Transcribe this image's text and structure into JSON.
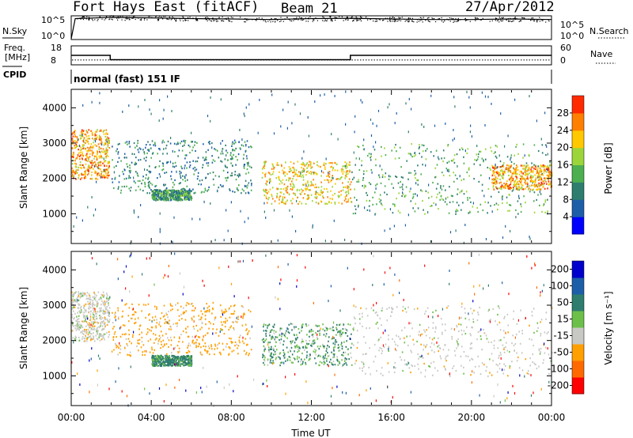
{
  "header": {
    "station": "Fort Hays East (fitACF)",
    "beam": "Beam 21",
    "date": "27/Apr/2012"
  },
  "noise_panel": {
    "left_label": "N.Sky",
    "right_label": "N.Search",
    "ticks_left": [
      "10^5",
      "10^0"
    ],
    "ticks_right": [
      "10^5",
      "10^0"
    ]
  },
  "freq_panel": {
    "left_label_top": "Freq.",
    "left_label_bottom": "[MHz]",
    "right_label": "Nave",
    "ticks_left": [
      "18",
      "8"
    ],
    "ticks_right": [
      "60",
      "0"
    ]
  },
  "cpid": {
    "label": "CPID",
    "value": "normal (fast) 151 IF"
  },
  "power_colorbar": {
    "title": "Power [dB]",
    "ticks": [
      "28",
      "24",
      "20",
      "16",
      "12",
      "8",
      "4"
    ],
    "colors": [
      "#0000ff",
      "#1c5fa8",
      "#2e7d6e",
      "#4caf50",
      "#9cd53a",
      "#ffc800",
      "#ff7f00",
      "#ff2a00"
    ]
  },
  "velocity_colorbar": {
    "title": "Velocity [m s⁻¹]",
    "ticks": [
      "200",
      "100",
      "50",
      "15",
      "-15",
      "-50",
      "-100",
      "-200"
    ],
    "colors": [
      "#0000cc",
      "#1c5fa8",
      "#2e7d6e",
      "#6cc04a",
      "#c8c8c4",
      "#ffa000",
      "#ff6a00",
      "#ff0000"
    ]
  },
  "chart_data": [
    {
      "type": "line",
      "title": "",
      "xlabel": "",
      "ylabel": "N.Sky",
      "ylog": true,
      "series": [
        {
          "name": "N.Sky",
          "x_hours": [
            0,
            0.2,
            2,
            4,
            6,
            8,
            10,
            12,
            14,
            16,
            18,
            20,
            22,
            24
          ],
          "values": [
            1,
            100000,
            200000,
            150000,
            100000,
            80000,
            60000,
            100000,
            120000,
            80000,
            60000,
            60000,
            80000,
            60000
          ]
        },
        {
          "name": "N.Search",
          "x_hours": [
            0,
            24
          ],
          "values": [
            1,
            1
          ]
        }
      ]
    },
    {
      "type": "line",
      "title": "",
      "xlabel": "",
      "ylabel": "Freq. [MHz]",
      "series": [
        {
          "name": "Freq.",
          "x_hours": [
            0,
            1.95,
            1.95,
            13.95,
            13.95,
            24
          ],
          "values": [
            13,
            13,
            10.5,
            10.5,
            13,
            13
          ]
        },
        {
          "name": "Nave",
          "x_hours": [
            0,
            24
          ],
          "values": [
            14,
            14
          ]
        }
      ],
      "ylim": [
        8,
        18
      ],
      "ylim_right": [
        0,
        60
      ]
    },
    {
      "type": "heatmap",
      "title": "",
      "xlabel": "",
      "ylabel": "Slant Range [km]",
      "zlabel": "Power [dB]",
      "xlim_hours": [
        0,
        24
      ],
      "ylim": [
        180,
        4500
      ],
      "x_tick_labels": [
        "00:00",
        "04:00",
        "08:00",
        "12:00",
        "16:00",
        "20:00",
        "00:00"
      ],
      "y_tick_labels": [
        "1000",
        "2000",
        "3000",
        "4000"
      ],
      "y_ticks": [
        1000,
        2000,
        3000,
        4000
      ],
      "features": [
        {
          "x_hours": [
            0,
            1.9
          ],
          "range_km": [
            2000,
            3400
          ],
          "power_db": 24
        },
        {
          "x_hours": [
            2,
            9
          ],
          "range_km": [
            1600,
            3100
          ],
          "power_db": 10
        },
        {
          "x_hours": [
            4,
            6
          ],
          "range_km": [
            1400,
            1700
          ],
          "power_db": 12
        },
        {
          "x_hours": [
            9.5,
            14
          ],
          "range_km": [
            1300,
            2500
          ],
          "power_db": 22
        },
        {
          "x_hours": [
            14,
            24
          ],
          "range_km": [
            1000,
            3000
          ],
          "power_db": 14
        },
        {
          "x_hours": [
            21,
            24
          ],
          "range_km": [
            1700,
            2400
          ],
          "power_db": 24
        }
      ]
    },
    {
      "type": "heatmap",
      "title": "",
      "xlabel": "Time UT",
      "ylabel": "Slant Range [km]",
      "zlabel": "Velocity [m s⁻¹]",
      "xlim_hours": [
        0,
        24
      ],
      "ylim": [
        180,
        4500
      ],
      "x_tick_labels": [
        "00:00",
        "04:00",
        "08:00",
        "12:00",
        "16:00",
        "20:00",
        "00:00"
      ],
      "y_tick_labels": [
        "1000",
        "2000",
        "3000",
        "4000"
      ],
      "y_ticks": [
        1000,
        2000,
        3000,
        4000
      ],
      "features": [
        {
          "x_hours": [
            0,
            1.9
          ],
          "range_km": [
            2000,
            3400
          ],
          "velocity": 0
        },
        {
          "x_hours": [
            2,
            9
          ],
          "range_km": [
            1600,
            3100
          ],
          "velocity": -30
        },
        {
          "x_hours": [
            4,
            6
          ],
          "range_km": [
            1300,
            1600
          ],
          "velocity": 40
        },
        {
          "x_hours": [
            9.5,
            14
          ],
          "range_km": [
            1300,
            2500
          ],
          "velocity": 30
        },
        {
          "x_hours": [
            14,
            24
          ],
          "range_km": [
            1000,
            3000
          ],
          "velocity": 0
        }
      ]
    }
  ]
}
